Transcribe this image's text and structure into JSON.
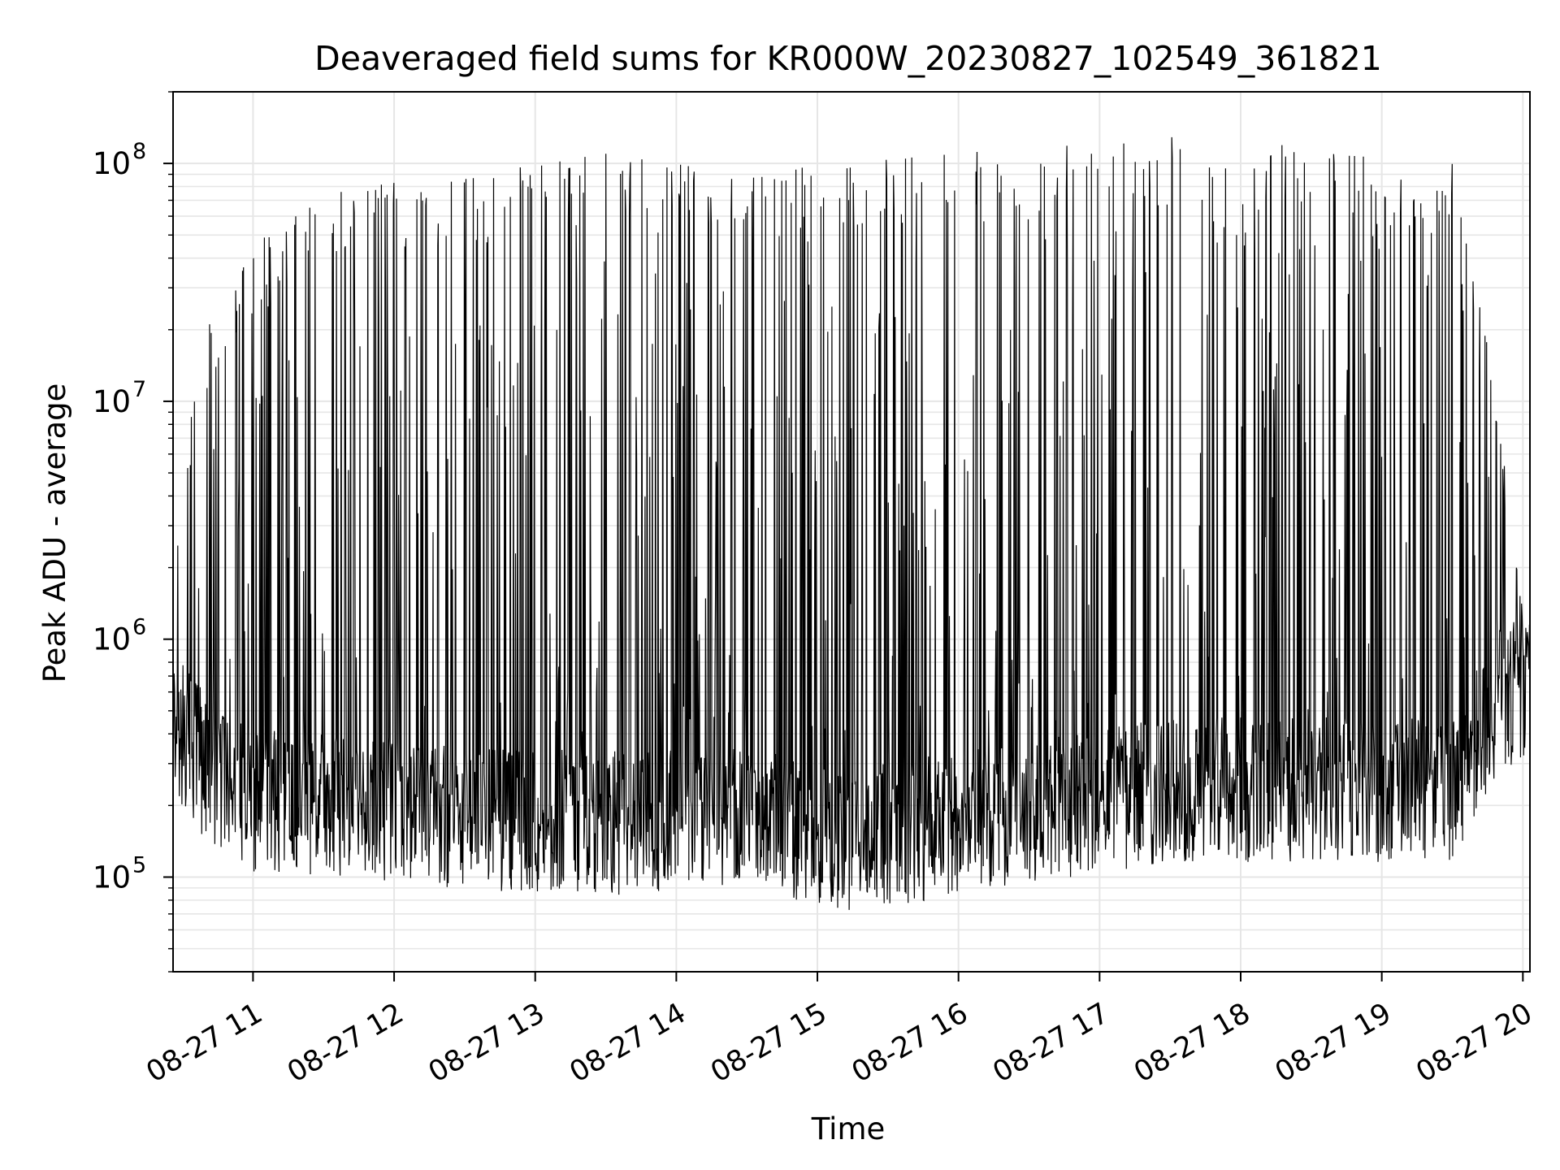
{
  "chart_data": {
    "type": "line",
    "title": "Deaveraged field sums for KR000W_20230827_102549_361821",
    "xlabel": "Time",
    "ylabel": "Peak ADU - average",
    "xscale": "time",
    "yscale": "log",
    "xlim": [
      "2023-08-27T10:26:00",
      "2023-08-27T20:03:00"
    ],
    "ylim": [
      40000,
      200000000
    ],
    "x_ticks": [
      {
        "t": "2023-08-27T11:00:00",
        "label": "08-27 11"
      },
      {
        "t": "2023-08-27T12:00:00",
        "label": "08-27 12"
      },
      {
        "t": "2023-08-27T13:00:00",
        "label": "08-27 13"
      },
      {
        "t": "2023-08-27T14:00:00",
        "label": "08-27 14"
      },
      {
        "t": "2023-08-27T15:00:00",
        "label": "08-27 15"
      },
      {
        "t": "2023-08-27T16:00:00",
        "label": "08-27 16"
      },
      {
        "t": "2023-08-27T17:00:00",
        "label": "08-27 17"
      },
      {
        "t": "2023-08-27T18:00:00",
        "label": "08-27 18"
      },
      {
        "t": "2023-08-27T19:00:00",
        "label": "08-27 19"
      },
      {
        "t": "2023-08-27T20:00:00",
        "label": "08-27 20"
      }
    ],
    "y_ticks": [
      {
        "value": 100000,
        "base": "10",
        "exp": "5"
      },
      {
        "value": 1000000,
        "base": "10",
        "exp": "6"
      },
      {
        "value": 10000000,
        "base": "10",
        "exp": "7"
      },
      {
        "value": 100000000,
        "base": "10",
        "exp": "8"
      }
    ],
    "grid": true,
    "line_color": "#000000",
    "series_profile": [
      {
        "t": "2023-08-27T10:26:00",
        "baseline": 500000,
        "spike_max": 5000000
      },
      {
        "t": "2023-08-27T10:40:00",
        "baseline": 300000,
        "spike_max": 20000000
      },
      {
        "t": "2023-08-27T11:00:00",
        "baseline": 220000,
        "spike_max": 45000000
      },
      {
        "t": "2023-08-27T11:30:00",
        "baseline": 220000,
        "spike_max": 80000000
      },
      {
        "t": "2023-08-27T12:30:00",
        "baseline": 190000,
        "spike_max": 90000000
      },
      {
        "t": "2023-08-27T13:30:00",
        "baseline": 180000,
        "spike_max": 110000000
      },
      {
        "t": "2023-08-27T14:30:00",
        "baseline": 200000,
        "spike_max": 90000000
      },
      {
        "t": "2023-08-27T15:00:00",
        "baseline": 150000,
        "spike_max": 100000000
      },
      {
        "t": "2023-08-27T15:45:00",
        "baseline": 170000,
        "spike_max": 110000000
      },
      {
        "t": "2023-08-27T16:30:00",
        "baseline": 200000,
        "spike_max": 115000000
      },
      {
        "t": "2023-08-27T17:30:00",
        "baseline": 250000,
        "spike_max": 130000000
      },
      {
        "t": "2023-08-27T18:30:00",
        "baseline": 250000,
        "spike_max": 120000000
      },
      {
        "t": "2023-08-27T19:30:00",
        "baseline": 250000,
        "spike_max": 100000000
      },
      {
        "t": "2023-08-27T19:50:00",
        "baseline": 600000,
        "spike_max": 10000000
      },
      {
        "t": "2023-08-27T20:03:00",
        "baseline": 700000,
        "spike_max": 1000000
      }
    ]
  }
}
